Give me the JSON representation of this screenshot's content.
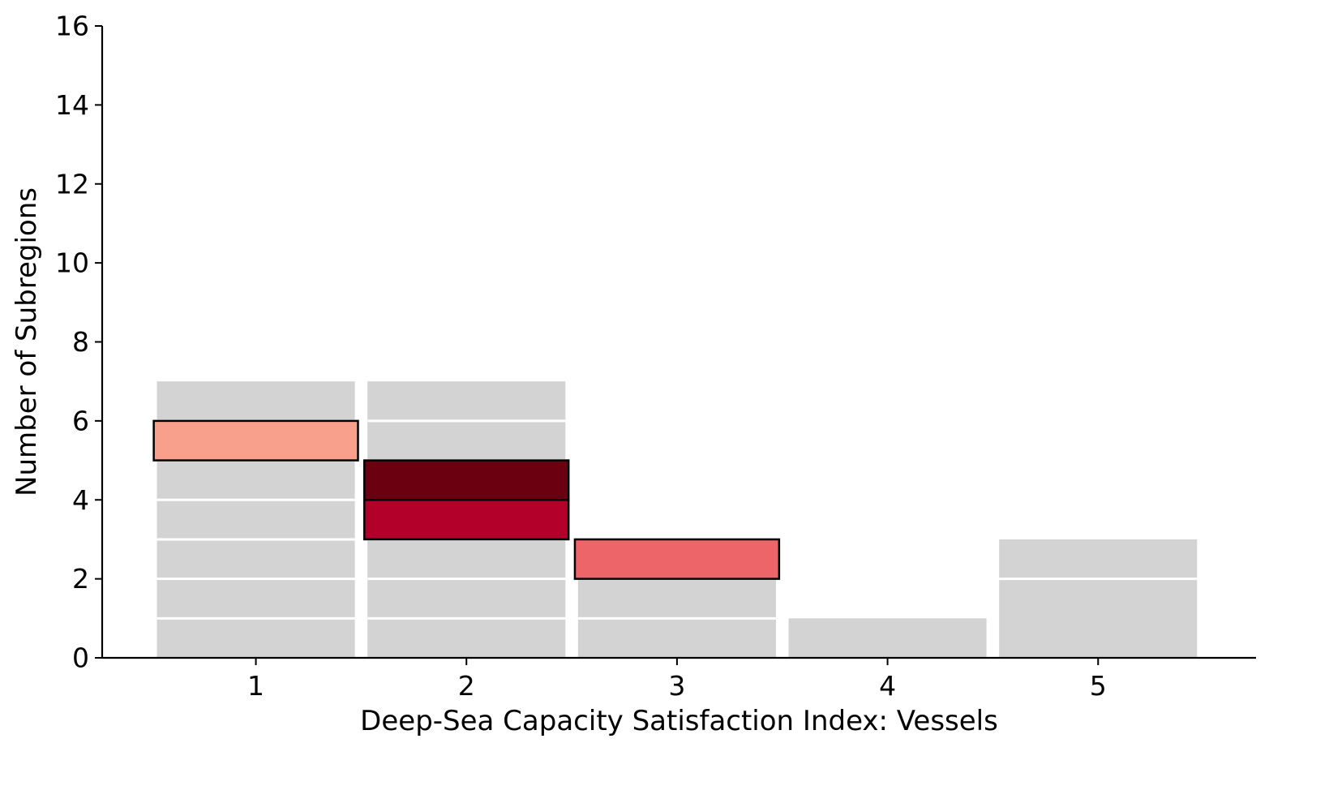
{
  "chart_data": {
    "type": "bar",
    "xlabel": "Deep-Sea Capacity Satisfaction Index: Vessels",
    "ylabel": "Number of Subregions",
    "categories": [
      "1",
      "2",
      "3",
      "4",
      "5"
    ],
    "x": [
      1,
      2,
      3,
      4,
      5
    ],
    "counts": [
      7,
      7,
      3,
      1,
      3
    ],
    "ylim": [
      0,
      16
    ],
    "yticks": [
      "0",
      "2",
      "4",
      "6",
      "8",
      "10",
      "12",
      "14",
      "16"
    ],
    "xlim": [
      0.27,
      5.75
    ],
    "grid": false,
    "legend": "none",
    "background_bar_color": "#d3d3d3",
    "stack_divider_color": "#ffffff",
    "stacked_units": [
      [
        1,
        1,
        1,
        1,
        1,
        1,
        1
      ],
      [
        1,
        1,
        1,
        1,
        1,
        1,
        1
      ],
      [
        1,
        1,
        1
      ],
      [
        1
      ],
      [
        2,
        1
      ]
    ],
    "highlights": [
      {
        "x": 1,
        "y0": 5,
        "y1": 6,
        "color": "#f9a08c"
      },
      {
        "x": 2,
        "y0": 4,
        "y1": 5,
        "color": "#6b0011"
      },
      {
        "x": 2,
        "y0": 3,
        "y1": 4,
        "color": "#b3002b"
      },
      {
        "x": 3,
        "y0": 2,
        "y1": 3,
        "color": "#ed6568"
      }
    ]
  }
}
